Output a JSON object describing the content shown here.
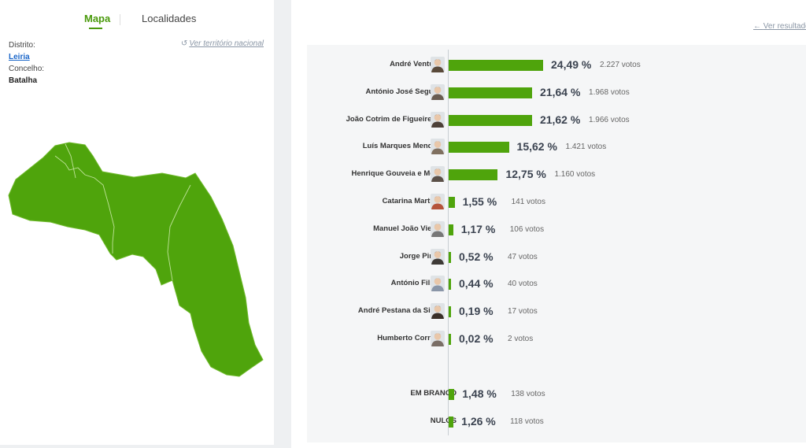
{
  "tabs": {
    "map": "Mapa",
    "localities": "Localidades"
  },
  "location": {
    "district_label": "Distrito:",
    "district_value": "Leiria",
    "council_label": "Concelho:",
    "council_value": "Batalha",
    "national_link": "Ver território nacional"
  },
  "results_link": "Ver resultados",
  "colors": {
    "accent": "#4a9a0c",
    "bar": "#4fa40c",
    "link": "#1a66c9"
  },
  "candidates": [
    {
      "name": "André Ventura",
      "percent": 24.49,
      "percent_label": "24,49 %",
      "votes_label": "2.227 votos",
      "avatar": "#5a4a3a"
    },
    {
      "name": "António José Seguro",
      "percent": 21.64,
      "percent_label": "21,64 %",
      "votes_label": "1.968 votos",
      "avatar": "#6a5c50"
    },
    {
      "name": "João Cotrim de Figueiredo",
      "percent": 21.62,
      "percent_label": "21,62 %",
      "votes_label": "1.966 votos",
      "avatar": "#4d4038"
    },
    {
      "name": "Luís Marques Mendes",
      "percent": 15.62,
      "percent_label": "15,62 %",
      "votes_label": "1.421 votos",
      "avatar": "#807060"
    },
    {
      "name": "Henrique Gouveia e Melo",
      "percent": 12.75,
      "percent_label": "12,75 %",
      "votes_label": "1.160 votos",
      "avatar": "#5b5048"
    },
    {
      "name": "Catarina Martins",
      "percent": 1.55,
      "percent_label": "1,55 %",
      "votes_label": "141 votos",
      "avatar": "#b5533a"
    },
    {
      "name": "Manuel João Vieira",
      "percent": 1.17,
      "percent_label": "1,17 %",
      "votes_label": "106 votos",
      "avatar": "#777777"
    },
    {
      "name": "Jorge Pinto",
      "percent": 0.52,
      "percent_label": "0,52 %",
      "votes_label": "47 votos",
      "avatar": "#3e3a36"
    },
    {
      "name": "António Filipe",
      "percent": 0.44,
      "percent_label": "0,44 %",
      "votes_label": "40 votos",
      "avatar": "#8a96a8"
    },
    {
      "name": "André Pestana da Silva",
      "percent": 0.19,
      "percent_label": "0,19 %",
      "votes_label": "17 votos",
      "avatar": "#3a2f28"
    },
    {
      "name": "Humberto Correia",
      "percent": 0.02,
      "percent_label": "0,02 %",
      "votes_label": "2 votos",
      "avatar": "#7a6e66"
    }
  ],
  "others": [
    {
      "name": "EM BRANCO",
      "percent": 1.48,
      "percent_label": "1,48 %",
      "votes_label": "138 votos"
    },
    {
      "name": "NULOS",
      "percent": 1.26,
      "percent_label": "1,26 %",
      "votes_label": "118 votos"
    }
  ]
}
